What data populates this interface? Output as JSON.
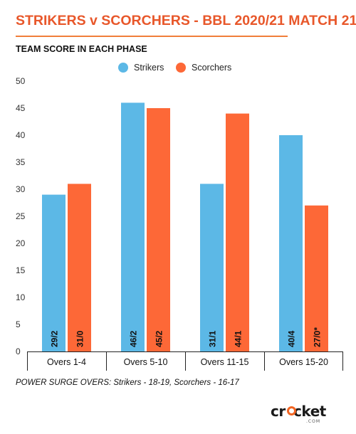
{
  "header": {
    "title": "STRIKERS v SCORCHERS - BBL 2020/21 MATCH 21",
    "subtitle": "TEAM SCORE IN EACH PHASE"
  },
  "colors": {
    "title": "#e8572a",
    "strikers": "#5cb8e6",
    "scorchers": "#fd6837",
    "axis": "#222222"
  },
  "chart_data": {
    "type": "bar",
    "title": "TEAM SCORE IN EACH PHASE",
    "categories": [
      "Overs 1-4",
      "Overs 5-10",
      "Overs 11-15",
      "Overs 15-20"
    ],
    "series": [
      {
        "name": "Strikers",
        "values": [
          29,
          46,
          31,
          40
        ],
        "labels": [
          "29/2",
          "46/2",
          "31/1",
          "40/4"
        ]
      },
      {
        "name": "Scorchers",
        "values": [
          31,
          45,
          44,
          27
        ],
        "labels": [
          "31/0",
          "45/2",
          "44/1",
          "27/0*"
        ]
      }
    ],
    "ylim": [
      0,
      50
    ],
    "yticks": [
      0,
      5,
      10,
      15,
      20,
      25,
      30,
      35,
      40,
      45,
      50
    ],
    "grid": false,
    "legend": "top"
  },
  "footnote": "POWER SURGE OVERS: Strikers - 18-19, Scorchers - 16-17",
  "logo": {
    "main": "cricket",
    "sub": "COM"
  }
}
